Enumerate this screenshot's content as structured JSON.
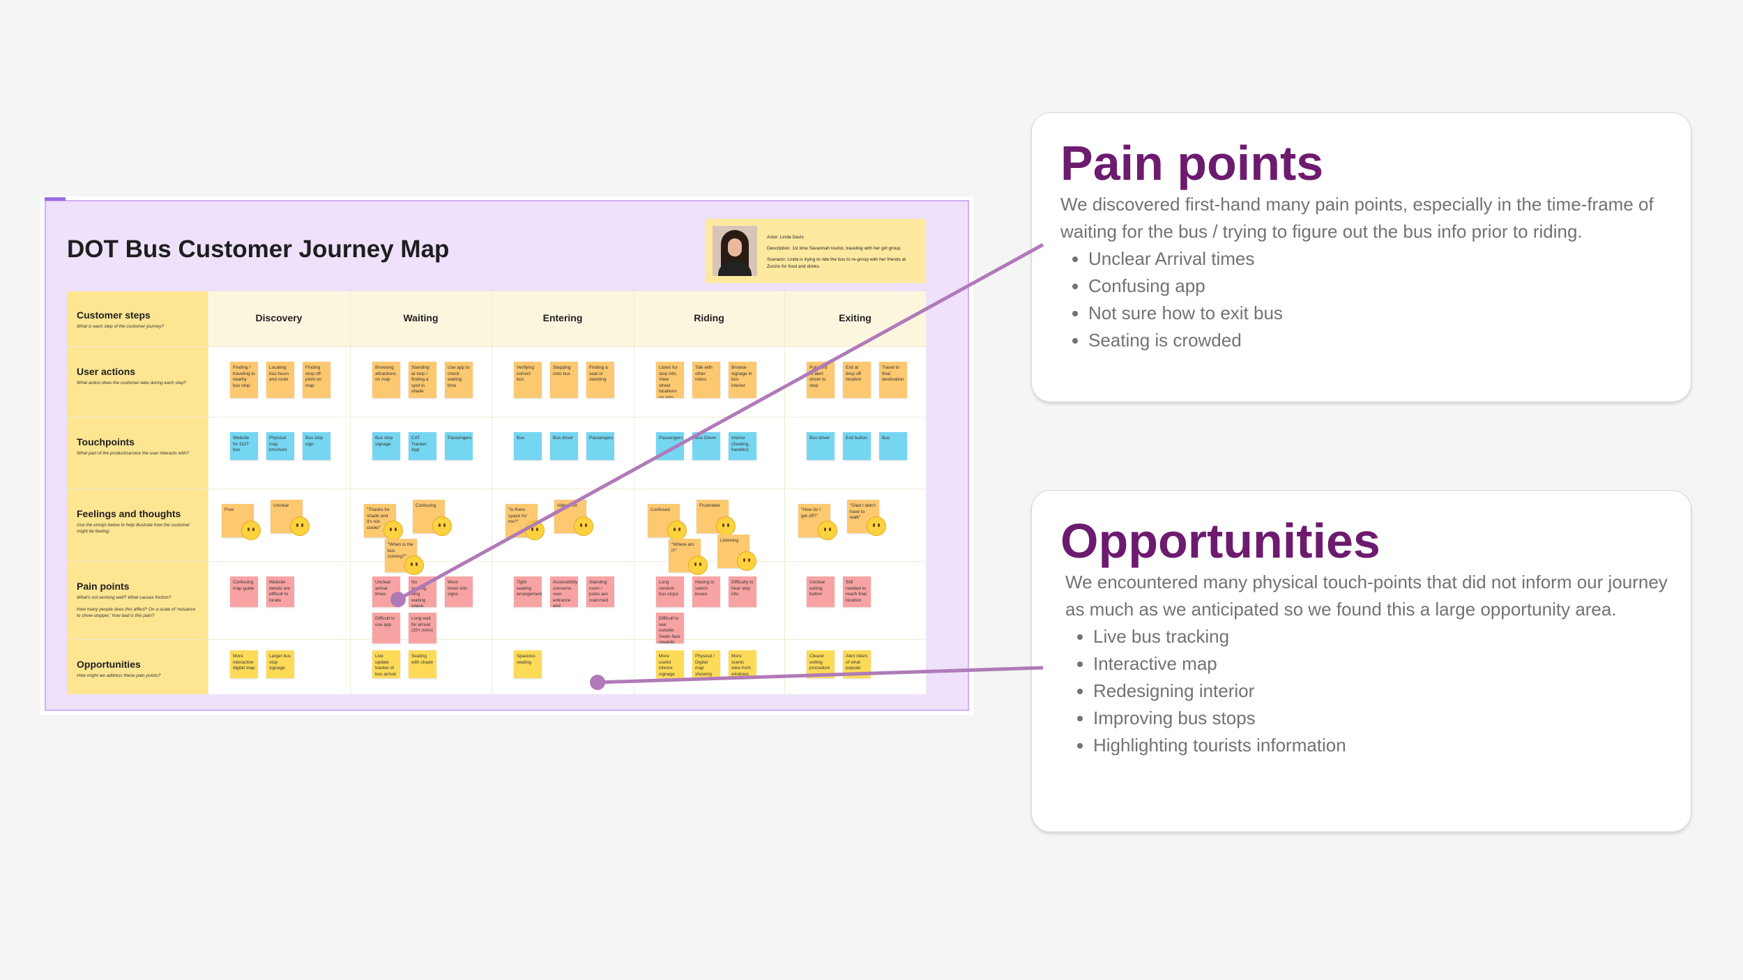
{
  "board": {
    "title": "DOT Bus Customer Journey Map",
    "persona": [
      "Actor: Linda Davis",
      "Description: 1st time Savannah tourist, traveling with her girl group.",
      "Scenario: Linda is trying to ride the bus to re-group with her friends at Zunzis for food and drinks."
    ],
    "rows": [
      {
        "label": "Customer steps",
        "descriptions": [
          "What is each step of the customer journey?"
        ]
      },
      {
        "label": "User actions",
        "descriptions": [
          "What action does the customer take during each step?"
        ]
      },
      {
        "label": "Touchpoints",
        "descriptions": [
          "What part of the product/service the user interacts with?"
        ]
      },
      {
        "label": "Feelings and thoughts",
        "descriptions": [
          "Use the emojis below to help illustrate how the customer might be feeling."
        ]
      },
      {
        "label": "Pain points",
        "descriptions": [
          "What's not working well? What causes friction?",
          "How many people does this affect? On a scale of 'nuisance to show-stopper,' how bad is this pain?"
        ]
      },
      {
        "label": "Opportunities",
        "descriptions": [
          "How might we address these pain points?"
        ]
      }
    ],
    "stages": [
      {
        "name": "Discovery",
        "user_actions": [
          "Finding / traveling to nearby bus stop",
          "Locating bus hours and route",
          "Finding drop off point on map"
        ],
        "touchpoints": [
          "Website for DOT bus",
          "Physical map brochure",
          "Bus stop sign"
        ],
        "feelings": [
          "Free",
          "Unclear"
        ],
        "pain_points": [
          "Confusing map guide",
          "Website details are difficult to locate"
        ],
        "opportunities": [
          "More interactive digital map",
          "Larger bus stop signage"
        ]
      },
      {
        "name": "Waiting",
        "user_actions": [
          "Browsing attractions on map",
          "Standing at stop / finding a spot in shade",
          "Use app to check waiting time"
        ],
        "touchpoints": [
          "Bus stop signage",
          "CAT Tracker App",
          "Passengers"
        ],
        "feelings": [
          "\"Thanks for shade and it's not cooler\"",
          "Confusing",
          "\"When is the bus coming?\""
        ],
        "pain_points": [
          "Unclear arrival times",
          "No seating, long waiting space",
          "Worn down info signs",
          "Difficult to use app",
          "Long wait for arrival (20+ mins)"
        ],
        "opportunities": [
          "Live update tracker of bus arrival",
          "Seating with shade"
        ]
      },
      {
        "name": "Entering",
        "user_actions": [
          "Verifying correct bus",
          "Stepping onto bus",
          "Finding a seat or standing"
        ],
        "touchpoints": [
          "Bus",
          "Bus driver",
          "Passengers"
        ],
        "feelings": [
          "\"Is there space for me?\"",
          "Able to sit"
        ],
        "pain_points": [
          "Tight seating arrangement",
          "Accessibility concerns over entrance and seating stops",
          "Standing room / poles are crammed"
        ],
        "opportunities": [
          "Spacious seating"
        ]
      },
      {
        "name": "Riding",
        "user_actions": [
          "Listen for stop info. View street locations on sign",
          "Talk with other riders",
          "Browse signage in bus interior"
        ],
        "touchpoints": [
          "Passengers",
          "Bus Driver",
          "Interior (Seating, handles)"
        ],
        "feelings": [
          "Confused",
          "Frustrated",
          "\"Where am I?\"",
          "Listening"
        ],
        "pain_points": [
          "Long random bus stops",
          "Having to switch buses",
          "Difficulty to hear stop info",
          "Difficult to see outside. Seats face inwards"
        ],
        "opportunities": [
          "More useful interior signage",
          "Physical / Digital map showing current location",
          "More scenic view from windows"
        ]
      },
      {
        "name": "Exiting",
        "user_actions": [
          "Pull cord to alert driver to stop",
          "Exit at drop off location",
          "Travel to final destination"
        ],
        "touchpoints": [
          "Bus driver",
          "Exit button",
          "Bus"
        ],
        "feelings": [
          "\"How do I get off?\"",
          "\"Glad I didn't have to walk\""
        ],
        "pain_points": [
          "Unclear exiting button",
          "Still needed to reach final location"
        ],
        "opportunities": [
          "Clearer exiting procedure",
          "Alert riders of what popular attractions are at the drop off"
        ]
      }
    ]
  },
  "cards": [
    {
      "title": "Pain points",
      "body": "We discovered first-hand many pain points, especially in the time-frame of waiting for the bus / trying to figure out the bus info prior to riding.",
      "items": [
        "Unclear Arrival times",
        "Confusing app",
        "Not sure how to exit bus",
        "Seating is crowded"
      ]
    },
    {
      "title": "Opportunities",
      "body": "We encountered many physical touch-points that did not inform our journey as much as we anticipated so we found this a large opportunity area.",
      "items": [
        "Live bus tracking",
        "Interactive map",
        "Redesigning interior",
        "Improving bus stops",
        "Highlighting tourists information"
      ]
    }
  ]
}
